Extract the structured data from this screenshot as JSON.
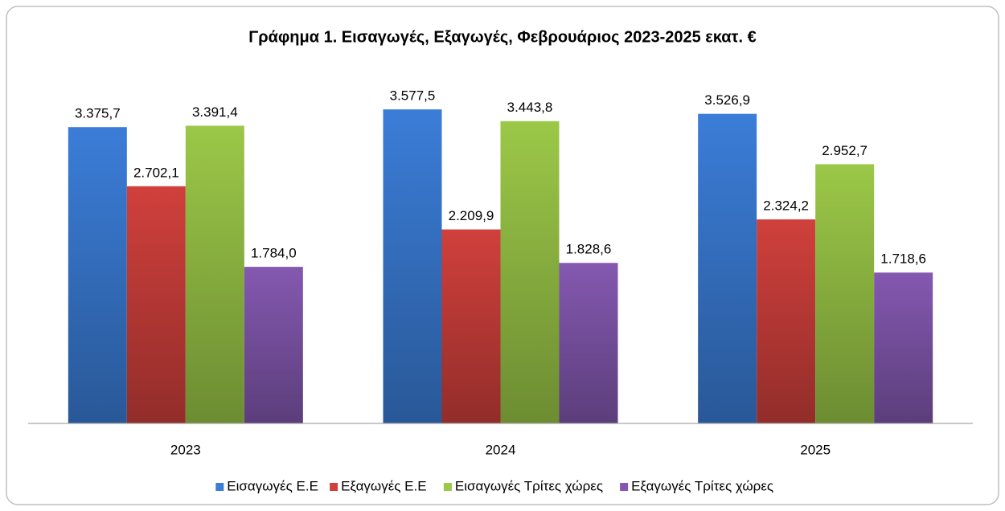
{
  "chart_data": {
    "type": "bar",
    "title": "Γράφημα 1. Εισαγωγές, Εξαγωγές, Φεβρουάριος 2023-2025 εκατ. €",
    "categories": [
      "2023",
      "2024",
      "2025"
    ],
    "series": [
      {
        "name": "Εισαγωγές Ε.Ε",
        "color": "#3b7dd8",
        "values": [
          3375.7,
          3577.5,
          3526.9
        ],
        "value_labels": [
          "3.375,7",
          "3.577,5",
          "3.526,9"
        ]
      },
      {
        "name": "Εξαγωγές  Ε.Ε",
        "color": "#d0403c",
        "values": [
          2702.1,
          2209.9,
          2324.2
        ],
        "value_labels": [
          "2.702,1",
          "2.209,9",
          "2.324,2"
        ]
      },
      {
        "name": "Εισαγωγές Τρίτες χώρες",
        "color": "#9bc848",
        "values": [
          3391.4,
          3443.8,
          2952.7
        ],
        "value_labels": [
          "3.391,4",
          "3.443,8",
          "2.952,7"
        ]
      },
      {
        "name": "Εξαγωγές Τρίτες χώρες",
        "color": "#8458b0",
        "values": [
          1784.0,
          1828.6,
          1718.6
        ],
        "value_labels": [
          "1.784,0",
          "1.828,6",
          "1.718,6"
        ]
      }
    ],
    "ylim": [
      0,
      4000
    ],
    "legend": "bottom"
  }
}
